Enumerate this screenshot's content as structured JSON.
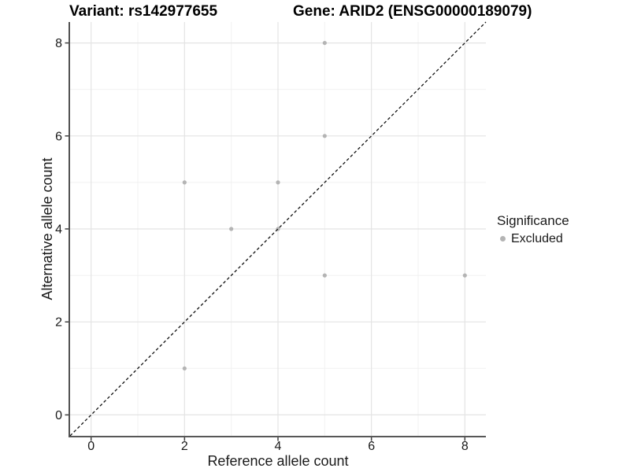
{
  "chart_data": {
    "type": "scatter",
    "titles": {
      "left": "Variant: rs142977655",
      "right": "Gene: ARID2 (ENSG00000189079)"
    },
    "xlabel": "Reference allele count",
    "ylabel": "Alternative allele count",
    "xlim": [
      -0.45,
      8.45
    ],
    "ylim": [
      -0.45,
      8.45
    ],
    "x_ticks": [
      0,
      2,
      4,
      6,
      8
    ],
    "y_ticks": [
      0,
      2,
      4,
      6,
      8
    ],
    "x_minor_ticks": [
      1,
      3,
      5,
      7
    ],
    "y_minor_ticks": [
      1,
      3,
      5,
      7
    ],
    "grid": true,
    "legend": {
      "title": "Significance",
      "position": "right",
      "items": [
        {
          "label": "Excluded",
          "color": "#b4b4b4"
        }
      ]
    },
    "identity_line": {
      "slope": 1,
      "intercept": 0,
      "style": "dashed",
      "color": "#111111"
    },
    "series": [
      {
        "name": "Excluded",
        "points": [
          [
            2,
            1
          ],
          [
            2,
            5
          ],
          [
            3,
            4
          ],
          [
            4,
            4
          ],
          [
            4,
            5
          ],
          [
            5,
            3
          ],
          [
            5,
            6
          ],
          [
            5,
            8
          ],
          [
            8,
            3
          ]
        ]
      }
    ],
    "colors": {
      "point": "#b4b4b4",
      "grid_major": "#e4e4e4",
      "grid_minor": "#f1f1f1",
      "axis": "#3f3f3f",
      "text": "#1a1a1a",
      "background": "#ffffff"
    }
  }
}
